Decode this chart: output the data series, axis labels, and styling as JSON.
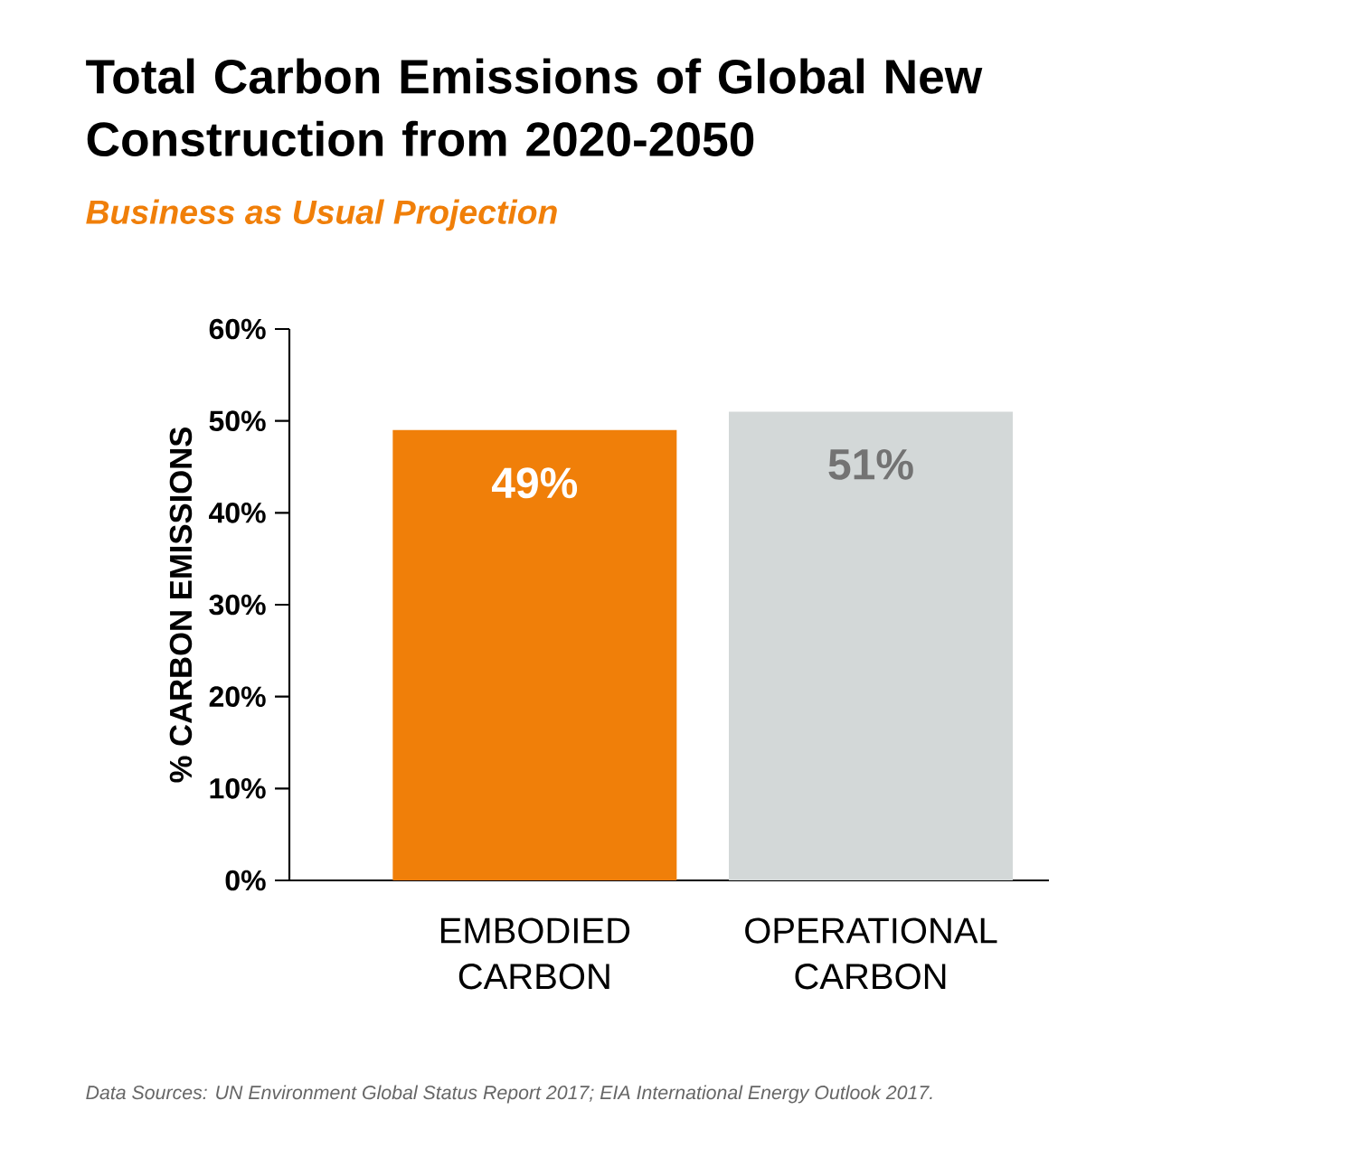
{
  "chart_data": {
    "type": "bar",
    "title": "Total Carbon Emissions of Global New Construction from 2020-2050",
    "subtitle": "Business as Usual Projection",
    "ylabel": "% CARBON EMISSIONS",
    "categories": [
      "EMBODIED CARBON",
      "OPERATIONAL CARBON"
    ],
    "values": [
      49,
      51
    ],
    "colors": [
      "#f07f09",
      "#d3d8d8"
    ],
    "value_labels": [
      "49%",
      "51%"
    ],
    "ylim": [
      0,
      60
    ],
    "yticks": [
      {
        "value": 0,
        "label": "0%"
      },
      {
        "value": 10,
        "label": "10%"
      },
      {
        "value": 20,
        "label": "20%"
      },
      {
        "value": 30,
        "label": "30%"
      },
      {
        "value": 40,
        "label": "40%"
      },
      {
        "value": 50,
        "label": "50%"
      },
      {
        "value": 60,
        "label": "60%"
      }
    ],
    "annotations": [
      "Data Sources: UN Environment Global Status Report 2017; EIA International Energy Outlook 2017."
    ]
  }
}
